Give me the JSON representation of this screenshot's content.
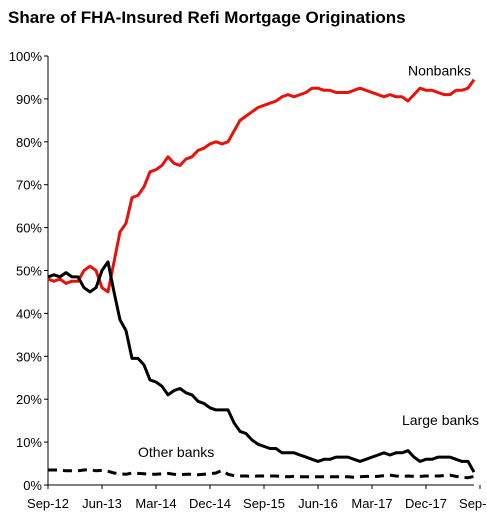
{
  "chart_data": {
    "type": "line",
    "title": "Share of FHA-Insured Refi Mortgage Originations",
    "xlabel": "",
    "ylabel": "",
    "ylim": [
      0,
      100
    ],
    "y_ticks": [
      0,
      10,
      20,
      30,
      40,
      50,
      60,
      70,
      80,
      90,
      100
    ],
    "y_tick_labels": [
      "0%",
      "10%",
      "20%",
      "30%",
      "40%",
      "50%",
      "60%",
      "70%",
      "80%",
      "90%",
      "100%"
    ],
    "x_tick_labels": [
      "Sep-12",
      "Jun-13",
      "Mar-14",
      "Dec-14",
      "Sep-15",
      "Jun-16",
      "Mar-17",
      "Dec-17",
      "Sep-18"
    ],
    "x_tick_index": [
      0,
      9,
      18,
      27,
      36,
      45,
      54,
      63,
      72
    ],
    "x_start": "Sep-12",
    "x_end": "Sep-18",
    "grid": false,
    "legend": "none",
    "series": [
      {
        "name": "Nonbanks",
        "color": "#e8120c",
        "style": "solid",
        "values": [
          48,
          47.5,
          48,
          47,
          47.5,
          47.5,
          50,
          51,
          50,
          46,
          45,
          52,
          59,
          61,
          67,
          67.5,
          69.5,
          73,
          73.5,
          74.5,
          76.5,
          75,
          74.5,
          76,
          76.5,
          78,
          78.5,
          79.5,
          80,
          79.5,
          80,
          82.5,
          85,
          86,
          87,
          88,
          88.5,
          89,
          89.5,
          90.5,
          91,
          90.5,
          91,
          91.5,
          92.5,
          92.5,
          92,
          92,
          91.5,
          91.5,
          91.5,
          92,
          92.5,
          92,
          91.5,
          91,
          90.5,
          91,
          90.5,
          90.5,
          89.5,
          91,
          92.5,
          92,
          92,
          91.5,
          91,
          91,
          92,
          92,
          92.5,
          94.5
        ]
      },
      {
        "name": "Large banks",
        "color": "#000000",
        "style": "solid",
        "values": [
          48.5,
          49,
          48.5,
          49.5,
          48.5,
          48.5,
          46,
          45,
          46,
          50,
          52,
          45,
          38.5,
          36,
          29.5,
          29.5,
          28,
          24.5,
          24,
          23,
          21,
          22,
          22.5,
          21.5,
          21,
          19.5,
          19,
          18,
          17.5,
          17.5,
          17.5,
          14.5,
          12.5,
          12,
          10.5,
          9.5,
          9,
          8.5,
          8.5,
          7.5,
          7.5,
          7.5,
          7,
          6.5,
          6,
          5.5,
          6,
          6,
          6.5,
          6.5,
          6.5,
          6,
          5.5,
          6,
          6.5,
          7,
          7.5,
          7,
          7.5,
          7.5,
          8,
          6.5,
          5.5,
          6,
          6,
          6.5,
          6.5,
          6.5,
          6,
          5.5,
          5.5,
          3
        ]
      },
      {
        "name": "Other banks",
        "color": "#000000",
        "style": "dashed",
        "values": [
          3.5,
          3.5,
          3.5,
          3.3,
          3.3,
          3.3,
          3.5,
          3.6,
          3.3,
          3.4,
          3.2,
          2.8,
          2.6,
          2.5,
          2.8,
          2.7,
          2.6,
          2.5,
          2.5,
          2.6,
          2.7,
          2.5,
          2.4,
          2.5,
          2.5,
          2.4,
          2.5,
          2.6,
          2.8,
          3.4,
          2.5,
          2.2,
          2.1,
          2.1,
          2,
          2.1,
          2.1,
          2.1,
          2.1,
          2,
          1.9,
          2,
          1.9,
          1.9,
          1.9,
          1.9,
          1.9,
          1.9,
          1.9,
          1.9,
          1.9,
          1.8,
          1.9,
          2,
          2,
          2,
          2.2,
          2.3,
          2.1,
          2,
          2.1,
          2,
          2,
          2.1,
          2.1,
          2.1,
          2.2,
          2.3,
          2,
          1.8,
          1.7,
          2
        ]
      }
    ],
    "annotations": [
      {
        "text": "Nonbanks",
        "series": "Nonbanks",
        "x_index": 60,
        "y": 95.5
      },
      {
        "text": "Large banks",
        "series": "Large banks",
        "x_index": 59,
        "y": 14
      },
      {
        "text": "Other banks",
        "series": "Other banks",
        "x_index": 15,
        "y": 6.5
      }
    ]
  }
}
